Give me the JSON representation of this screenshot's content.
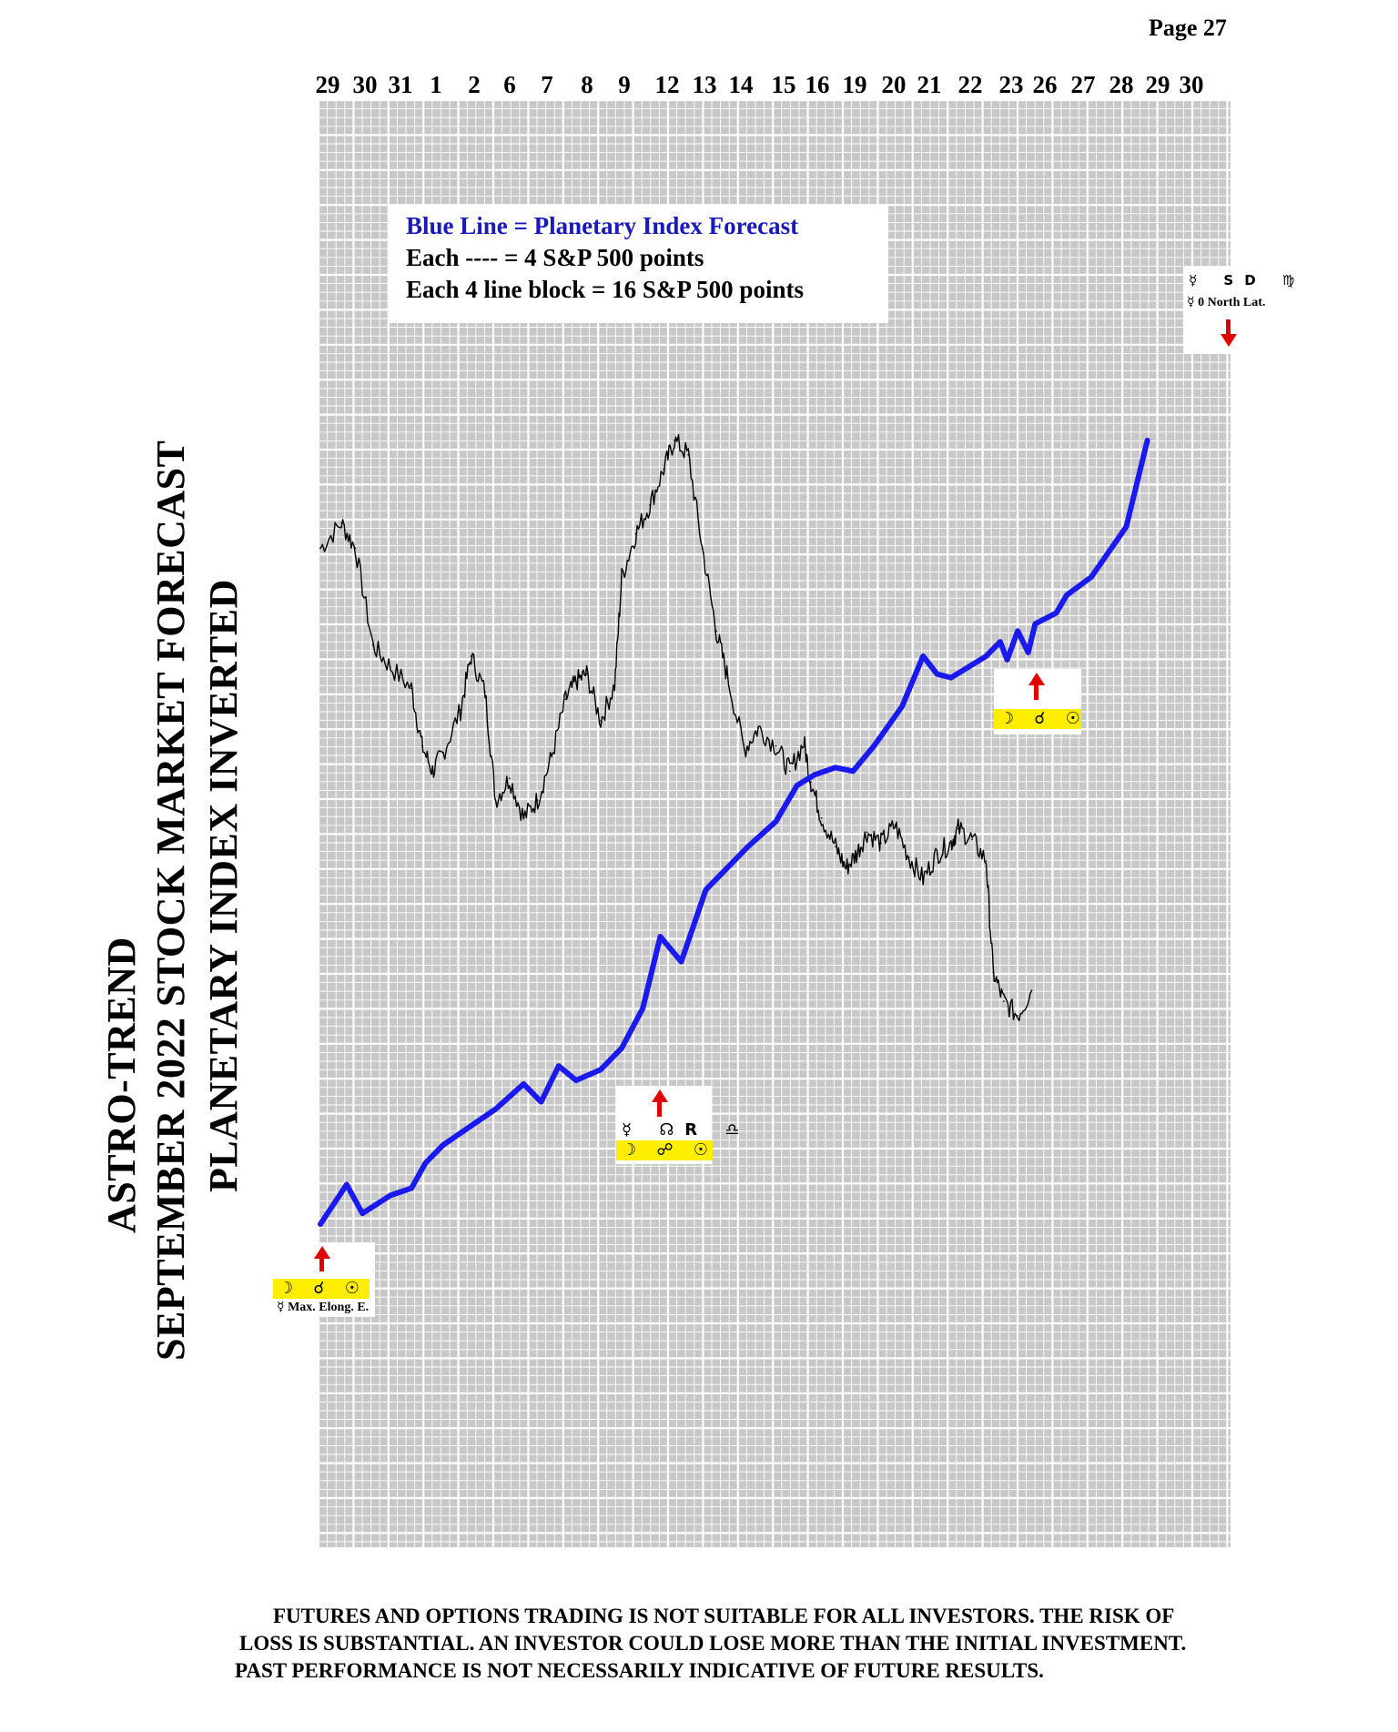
{
  "page_label": "Page  27",
  "title": {
    "line1": "ASTRO-TREND",
    "line2": "SEPTEMBER 2022  STOCK MARKET FORECAST",
    "line3": "PLANETARY INDEX INVERTED"
  },
  "legend": {
    "title": "Blue Line = Planetary Index Forecast",
    "line2": "Each ---- =   4 S&P 500 points",
    "line3": "Each 4 line block =  16  S&P 500 points"
  },
  "markers": [
    {
      "id": "marker-aug29",
      "top_glyphs": "",
      "strip_glyphs": "☽ ☌ ☉",
      "note": "☿ Max. Elong. E.",
      "arrow": "up"
    },
    {
      "id": "marker-sep10",
      "top_glyphs": "☿ ☊R ♎",
      "strip_glyphs": "☽ ☍ ☉",
      "note": "",
      "arrow": "up"
    },
    {
      "id": "marker-sep25",
      "top_glyphs": "",
      "strip_glyphs": "☽ ☌ ☉",
      "note": "",
      "arrow": "up"
    },
    {
      "id": "marker-oct1",
      "top_glyphs": "☿ SD ♍",
      "strip_glyphs": "",
      "note": "☿ 0 North Lat.",
      "arrow": "down"
    }
  ],
  "disclaimer": {
    "line1": "FUTURES AND OPTIONS TRADING IS NOT SUITABLE FOR ALL INVESTORS.  THE RISK OF",
    "line2": "LOSS IS SUBSTANTIAL.  AN INVESTOR COULD LOSE MORE THAN THE INITIAL INVESTMENT.",
    "line3": "PAST PERFORMANCE IS NOT NECESSARILY INDICATIVE OF FUTURE RESULTS."
  },
  "colors": {
    "forecast_line": "#1a1aee",
    "price_line": "#000000",
    "grid_background": "#c8c8c8",
    "grid_line": "#ffffff",
    "highlight": "#ffee00",
    "arrow": "#e00000"
  },
  "chart_data": {
    "type": "line",
    "title": "",
    "x_labels": [
      "29",
      "30",
      "31",
      "1",
      "2",
      "6",
      "7",
      "8",
      "9",
      "12",
      "13",
      "14",
      "15",
      "16",
      "19",
      "20",
      "21",
      "22",
      "23",
      "26",
      "27",
      "28",
      "29",
      "30"
    ],
    "y_units": "relative (inverted), 1 unit = 4 S&P 500 points",
    "series": [
      {
        "name": "Blue Line = Planetary Index Forecast",
        "color": "#1a1aee",
        "points": [
          [
            0.0,
            0
          ],
          [
            0.75,
            11
          ],
          [
            1.2,
            3
          ],
          [
            2.0,
            8
          ],
          [
            2.6,
            10
          ],
          [
            3.0,
            17
          ],
          [
            3.5,
            22
          ],
          [
            4.4,
            28
          ],
          [
            5.0,
            32
          ],
          [
            5.8,
            39
          ],
          [
            6.3,
            34
          ],
          [
            6.8,
            44
          ],
          [
            7.3,
            40
          ],
          [
            8.0,
            43
          ],
          [
            8.6,
            49
          ],
          [
            9.2,
            60
          ],
          [
            9.7,
            80
          ],
          [
            10.3,
            73
          ],
          [
            11.0,
            93
          ],
          [
            11.6,
            99
          ],
          [
            12.2,
            105
          ],
          [
            13.0,
            112
          ],
          [
            13.6,
            122
          ],
          [
            14.1,
            125
          ],
          [
            14.7,
            127
          ],
          [
            15.2,
            126
          ],
          [
            15.8,
            133
          ],
          [
            16.6,
            144
          ],
          [
            17.2,
            158
          ],
          [
            17.6,
            153
          ],
          [
            18.0,
            152
          ],
          [
            19.0,
            158
          ],
          [
            19.4,
            162
          ],
          [
            19.6,
            157
          ],
          [
            19.9,
            165
          ],
          [
            20.2,
            159
          ],
          [
            20.4,
            167
          ],
          [
            21.0,
            170
          ],
          [
            21.3,
            175
          ],
          [
            22.0,
            180
          ],
          [
            23.0,
            194
          ],
          [
            23.6,
            218
          ]
        ]
      },
      {
        "name": "S&P 500 (inverted)",
        "color": "#000000",
        "points": [
          [
            0.0,
            188
          ],
          [
            0.6,
            195
          ],
          [
            1.0,
            188
          ],
          [
            1.5,
            161
          ],
          [
            2.0,
            155
          ],
          [
            2.6,
            149
          ],
          [
            2.9,
            133
          ],
          [
            3.2,
            126
          ],
          [
            3.5,
            131
          ],
          [
            4.0,
            143
          ],
          [
            4.3,
            158
          ],
          [
            4.7,
            148
          ],
          [
            5.0,
            118
          ],
          [
            5.4,
            124
          ],
          [
            5.8,
            113
          ],
          [
            6.2,
            118
          ],
          [
            6.6,
            130
          ],
          [
            7.0,
            146
          ],
          [
            7.3,
            151
          ],
          [
            7.6,
            153
          ],
          [
            8.0,
            140
          ],
          [
            8.4,
            150
          ],
          [
            8.6,
            180
          ],
          [
            9.0,
            192
          ],
          [
            9.4,
            200
          ],
          [
            9.8,
            210
          ],
          [
            10.1,
            218
          ],
          [
            10.5,
            214
          ],
          [
            10.9,
            188
          ],
          [
            11.3,
            165
          ],
          [
            11.6,
            153
          ],
          [
            12.1,
            132
          ],
          [
            12.5,
            138
          ],
          [
            13.0,
            133
          ],
          [
            13.4,
            126
          ],
          [
            13.8,
            134
          ],
          [
            14.0,
            123
          ],
          [
            14.3,
            113
          ],
          [
            14.7,
            105
          ],
          [
            15.0,
            99
          ],
          [
            15.3,
            103
          ],
          [
            15.6,
            109
          ],
          [
            16.0,
            106
          ],
          [
            16.4,
            111
          ],
          [
            16.8,
            102
          ],
          [
            17.2,
            96
          ],
          [
            17.6,
            103
          ],
          [
            18.0,
            106
          ],
          [
            18.2,
            110
          ],
          [
            18.6,
            107
          ],
          [
            19.0,
            101
          ],
          [
            19.2,
            70
          ],
          [
            19.5,
            62
          ],
          [
            19.9,
            58
          ],
          [
            20.3,
            65
          ]
        ]
      }
    ],
    "grid": true
  }
}
